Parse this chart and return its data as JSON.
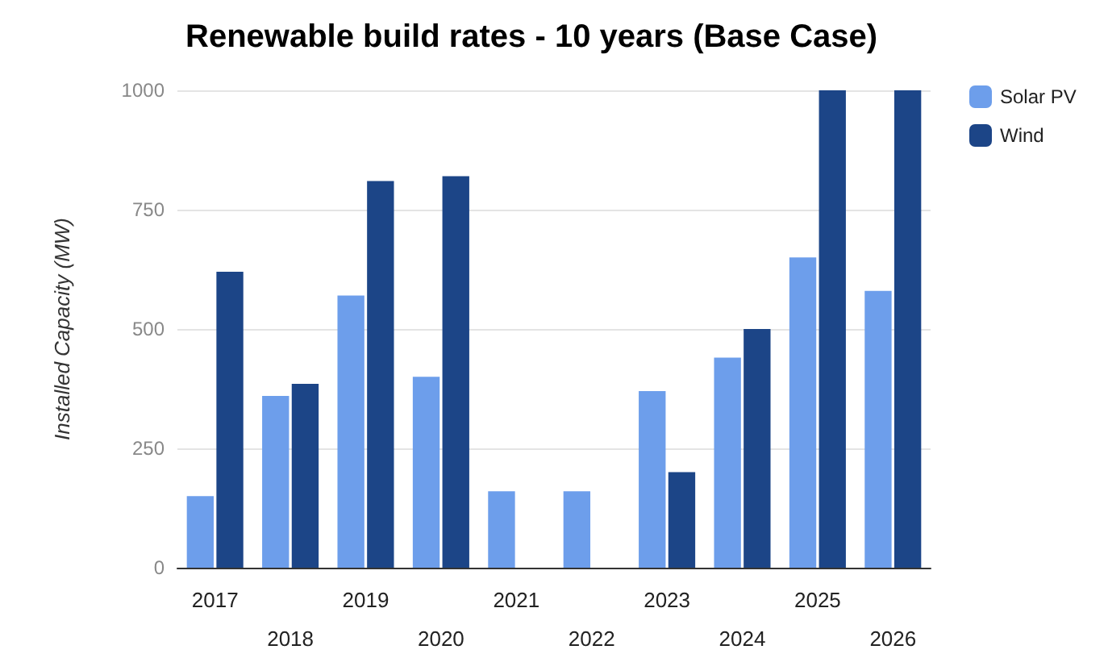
{
  "chart_data": {
    "type": "bar",
    "title": "Renewable build rates - 10 years (Base Case)",
    "ylabel": "Installed Capacity (MW)",
    "categories": [
      "2017",
      "2018",
      "2019",
      "2020",
      "2021",
      "2022",
      "2023",
      "2024",
      "2025",
      "2026"
    ],
    "series": [
      {
        "name": "Solar PV",
        "color": "#6d9eeb",
        "values": [
          150,
          360,
          570,
          400,
          160,
          160,
          370,
          440,
          650,
          580
        ]
      },
      {
        "name": "Wind",
        "color": "#1c4587",
        "values": [
          620,
          385,
          810,
          820,
          0,
          0,
          200,
          500,
          1000,
          1000
        ]
      }
    ],
    "ylim": [
      0,
      1000
    ],
    "yticks": [
      0,
      250,
      500,
      750,
      1000
    ],
    "grid": "y",
    "legend": "top right"
  }
}
